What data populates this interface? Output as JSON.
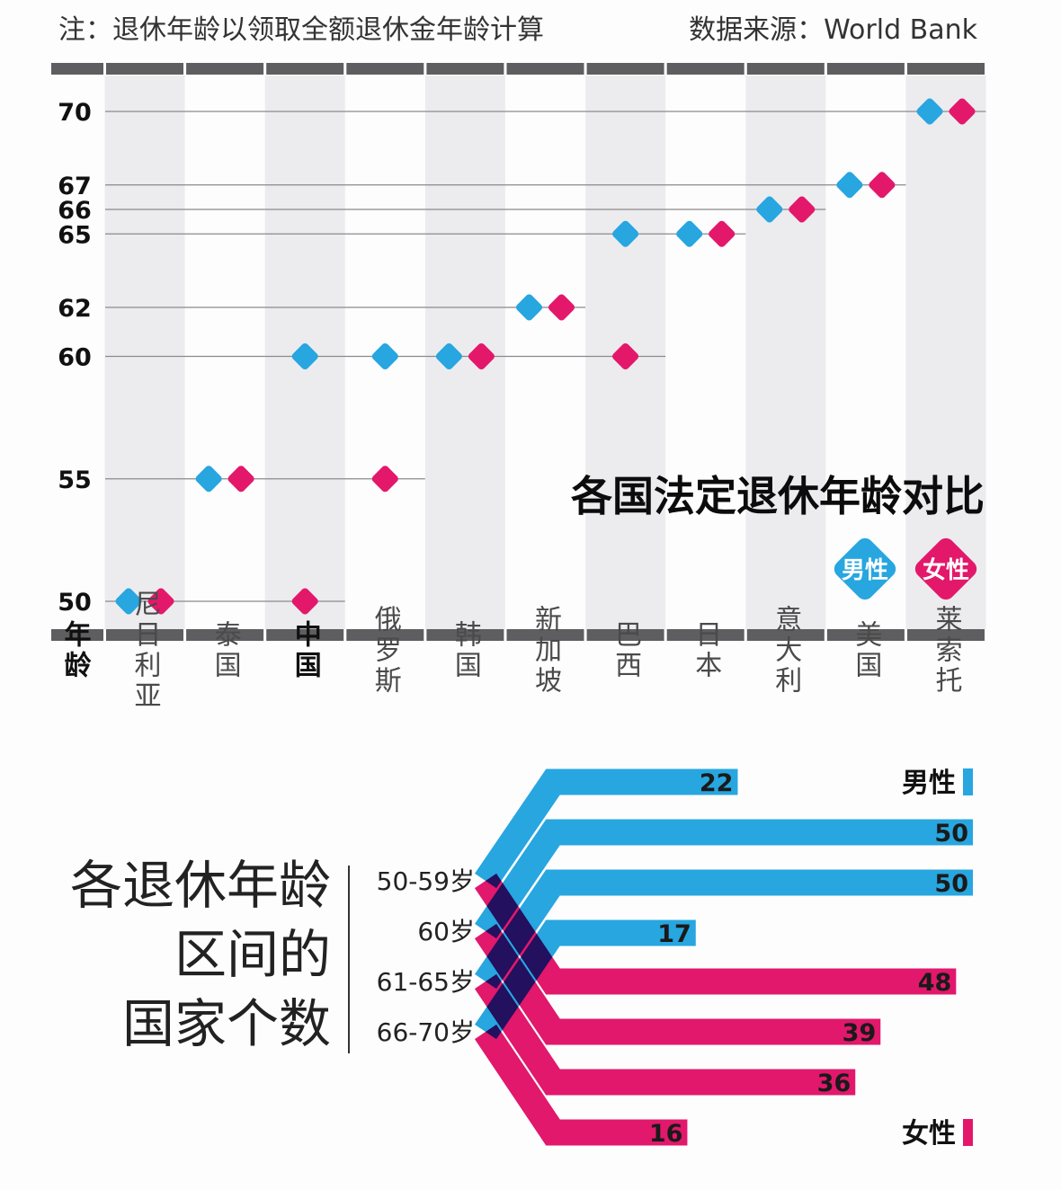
{
  "note": "注：退休年龄以领取全额退休金年龄计算",
  "source": "数据来源：World Bank",
  "colors": {
    "male": "#27a6e0",
    "female": "#e3186b",
    "column_shade": "#ececef",
    "frame_bar": "#5e5e60"
  },
  "chart_data": [
    {
      "type": "scatter",
      "title": "各国法定退休年龄对比",
      "ylabel": "年龄",
      "yticks": [
        50,
        55,
        60,
        62,
        65,
        66,
        67,
        70
      ],
      "ylim": [
        50,
        70
      ],
      "grid": "horizontal lines at each age used",
      "legend": {
        "placement": "right, below title",
        "male": "男性",
        "female": "女性"
      },
      "categories": [
        "尼日利亚",
        "泰国",
        "中国",
        "俄罗斯",
        "韩国",
        "新加坡",
        "巴西",
        "日本",
        "意大利",
        "美国",
        "莱索托"
      ],
      "highlight_category": "中国",
      "series": [
        {
          "name": "男性",
          "values": [
            50,
            55,
            60,
            60,
            60,
            62,
            65,
            65,
            66,
            67,
            70
          ]
        },
        {
          "name": "女性",
          "values": [
            50,
            55,
            50,
            55,
            60,
            62,
            60,
            65,
            66,
            67,
            70
          ]
        }
      ]
    },
    {
      "type": "bar",
      "title": [
        "各退休年龄",
        "区间的",
        "国家个数"
      ],
      "categories": [
        "50-59岁",
        "60岁",
        "61-65岁",
        "66-70岁"
      ],
      "series": [
        {
          "name": "男性",
          "values": [
            22,
            50,
            50,
            17
          ]
        },
        {
          "name": "女性",
          "values": [
            48,
            39,
            36,
            16
          ]
        }
      ]
    }
  ]
}
